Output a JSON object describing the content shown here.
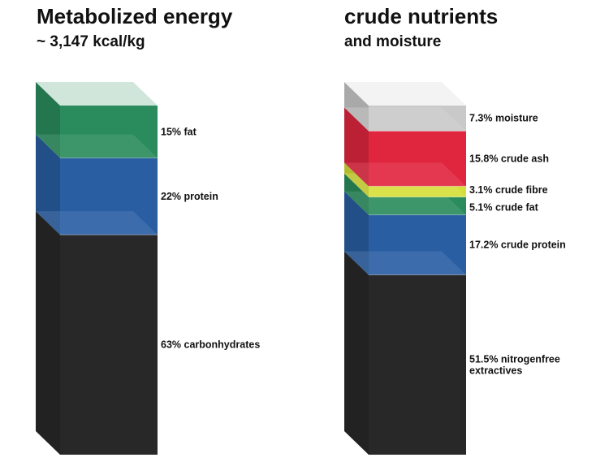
{
  "chart_data": [
    {
      "type": "bar",
      "title": "Metabolized energy",
      "subtitle": "~ 3,147 kcal/kg",
      "segments": [
        {
          "name": "carbonhydrates",
          "value": 63,
          "label": "63% carbonhydrates",
          "color": "#282828"
        },
        {
          "name": "protein",
          "value": 22,
          "label": "22% protein",
          "color": "#2a5ea3"
        },
        {
          "name": "fat",
          "value": 15,
          "label": "15% fat",
          "color": "#2a8c5c"
        }
      ]
    },
    {
      "type": "bar",
      "title": "crude nutrients",
      "subtitle": "and moisture",
      "segments": [
        {
          "name": "nitrogenfree extractives",
          "value": 51.5,
          "label": [
            "51.5% nitrogenfree",
            "extractives"
          ],
          "color": "#282828"
        },
        {
          "name": "crude protein",
          "value": 17.2,
          "label": "17.2% crude protein",
          "color": "#2a5ea3"
        },
        {
          "name": "crude fat",
          "value": 5.1,
          "label": "5.1% crude fat",
          "color": "#2a8c5c"
        },
        {
          "name": "crude fibre",
          "value": 3.1,
          "label": "3.1% crude fibre",
          "color": "#d6df3a"
        },
        {
          "name": "crude ash",
          "value": 15.8,
          "label": "15.8% crude ash",
          "color": "#e0263f"
        },
        {
          "name": "moisture",
          "value": 7.3,
          "label": "7.3% moisture",
          "color": "#c9c9c9"
        }
      ]
    }
  ]
}
